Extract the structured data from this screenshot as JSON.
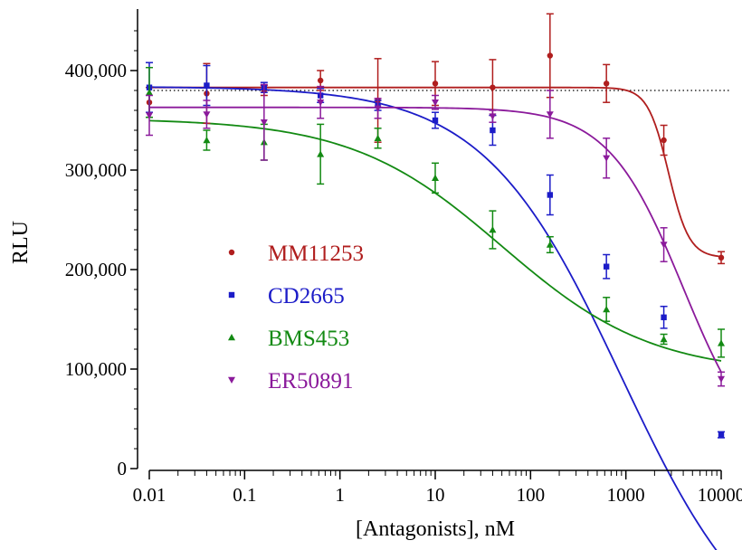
{
  "chart_data": {
    "type": "scatter",
    "xlabel": "[Antagonists], nM",
    "ylabel": "RLU",
    "xscale": "log",
    "xlim": [
      0.01,
      10000
    ],
    "ylim": [
      0,
      460000
    ],
    "x_ticks": [
      0.01,
      0.1,
      1,
      10,
      100,
      1000,
      10000
    ],
    "x_tick_labels": [
      "0.01",
      "0.1",
      "1",
      "10",
      "100",
      "1000",
      "10000"
    ],
    "y_ticks": [
      0,
      100000,
      200000,
      300000,
      400000
    ],
    "y_tick_labels": [
      "0",
      "100,000",
      "200,000",
      "300,000",
      "400,000"
    ],
    "reference_line": {
      "y": 380000,
      "style": "dotted",
      "color": "#000000"
    },
    "legend_position": "center-left",
    "x": [
      0.01,
      0.04,
      0.16,
      0.625,
      2.5,
      10,
      40,
      160,
      625,
      2500,
      10000
    ],
    "series": [
      {
        "name": "MM11253",
        "color": "#b01e1e",
        "marker": "circle",
        "values": [
          368000,
          377000,
          380000,
          390000,
          370000,
          387000,
          383000,
          415000,
          387000,
          330000,
          212000
        ],
        "errors": [
          15000,
          30000,
          5000,
          10000,
          42000,
          22000,
          28000,
          42000,
          19000,
          15000,
          6000
        ],
        "fit": {
          "top": 383000,
          "bottom": 212000,
          "ic50": 2800,
          "hill": 4
        }
      },
      {
        "name": "CD2665",
        "color": "#1c1cc8",
        "marker": "square",
        "values": [
          383000,
          385000,
          383000,
          375000,
          365000,
          350000,
          340000,
          275000,
          203000,
          152000,
          34000
        ],
        "errors": [
          25000,
          20000,
          5000,
          7000,
          5000,
          8000,
          15000,
          20000,
          12000,
          11000,
          3000
        ],
        "fit": {
          "top": 384000,
          "bottom": -200000,
          "ic50": 900,
          "hill": 0.6
        }
      },
      {
        "name": "BMS453",
        "color": "#138a13",
        "marker": "triangle-up",
        "values": [
          378000,
          330000,
          328000,
          316000,
          332000,
          292000,
          240000,
          225000,
          160000,
          130000,
          126000
        ],
        "errors": [
          25000,
          10000,
          18000,
          30000,
          10000,
          15000,
          19000,
          8000,
          12000,
          5000,
          14000
        ],
        "fit": {
          "top": 352000,
          "bottom": 95000,
          "ic50": 50,
          "hill": 0.55
        }
      },
      {
        "name": "ER50891",
        "color": "#8b1a9b",
        "marker": "triangle-down",
        "values": [
          355000,
          356000,
          348000,
          368000,
          362000,
          368000,
          354000,
          356000,
          312000,
          225000,
          90000
        ],
        "errors": [
          20000,
          14000,
          38000,
          16000,
          10000,
          7000,
          6000,
          24000,
          20000,
          17000,
          7000
        ],
        "fit": {
          "top": 363000,
          "bottom": 0,
          "ic50": 4000,
          "hill": 1.1
        }
      }
    ]
  }
}
